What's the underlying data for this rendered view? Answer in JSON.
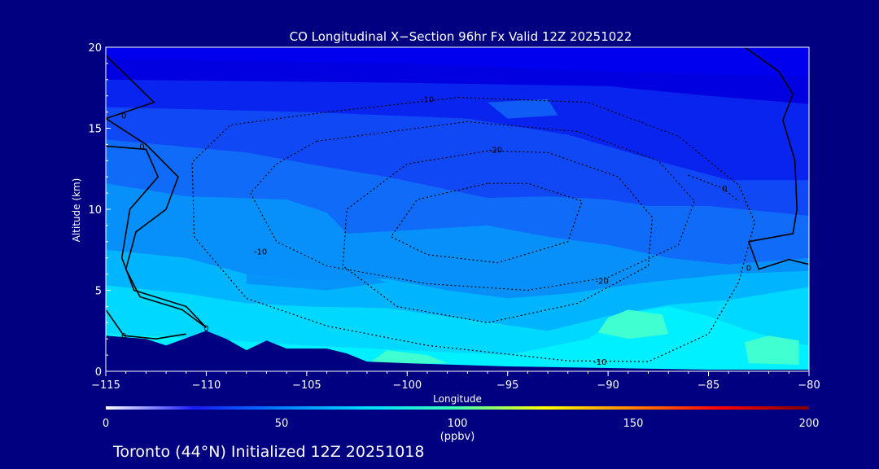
{
  "chart_data": {
    "type": "contour",
    "title": "CO Longitudinal X−Section 96hr  Fx Valid 12Z 20251022",
    "xlabel": "Longitude",
    "ylabel": "Altitude (km)",
    "xlim": [
      -115,
      -80
    ],
    "ylim": [
      0,
      20
    ],
    "x_ticks": [
      -115,
      -110,
      -105,
      -100,
      -95,
      -90,
      -85,
      -80
    ],
    "x_tick_labels": [
      "−115",
      "−110",
      "−105",
      "−100",
      "−95",
      "−90",
      "−85",
      "−80"
    ],
    "y_ticks": [
      0,
      5,
      10,
      15,
      20
    ],
    "y_tick_labels": [
      "0",
      "5",
      "10",
      "15",
      "20"
    ],
    "colorbar": {
      "label": "(ppbv)",
      "min": 0,
      "max": 200,
      "ticks": [
        0,
        50,
        100,
        150,
        200
      ],
      "tick_labels": [
        "0",
        "50",
        "100",
        "150",
        "200"
      ],
      "colors": [
        "#ffffff",
        "#1a1aff",
        "#0080ff",
        "#00e0ff",
        "#40ffb0",
        "#ffff00",
        "#ff8000",
        "#ff0000",
        "#800000"
      ]
    },
    "filled_levels": [
      {
        "range_ppbv": "20-30",
        "color": "#0000ee"
      },
      {
        "range_ppbv": "30-40",
        "color": "#0a24f0"
      },
      {
        "range_ppbv": "40-50",
        "color": "#1048f5"
      },
      {
        "range_ppbv": "50-60",
        "color": "#106cf8"
      },
      {
        "range_ppbv": "60-70",
        "color": "#0890fa"
      },
      {
        "range_ppbv": "70-80",
        "color": "#00b4fd"
      },
      {
        "range_ppbv": "80-90",
        "color": "#00d8ff"
      },
      {
        "range_ppbv": "90-100",
        "color": "#00f0ff"
      },
      {
        "range_ppbv": "100-110",
        "color": "#40ffd0"
      }
    ],
    "contour_labels": [
      {
        "text": "0",
        "lon": -114.1,
        "alt": 15.8
      },
      {
        "text": "0",
        "lon": -113.2,
        "alt": 13.9
      },
      {
        "text": "0",
        "lon": -114.1,
        "alt": 2.2
      },
      {
        "text": "0",
        "lon": -110.0,
        "alt": 2.7
      },
      {
        "text": "0",
        "lon": -84.2,
        "alt": 11.3
      },
      {
        "text": "0",
        "lon": -83.0,
        "alt": 6.4
      },
      {
        "text": "-10",
        "lon": -99.0,
        "alt": 16.8
      },
      {
        "text": "-10",
        "lon": -107.3,
        "alt": 7.4
      },
      {
        "text": "-10",
        "lon": -90.4,
        "alt": 0.6
      },
      {
        "text": "-20",
        "lon": -95.6,
        "alt": 13.7
      },
      {
        "text": "-20",
        "lon": -90.3,
        "alt": 5.6
      }
    ],
    "terrain_profile": [
      [
        -115,
        2.2
      ],
      [
        -113,
        2.0
      ],
      [
        -112,
        1.6
      ],
      [
        -110,
        2.5
      ],
      [
        -109,
        2.0
      ],
      [
        -108,
        1.3
      ],
      [
        -107,
        1.9
      ],
      [
        -106,
        1.4
      ],
      [
        -104,
        1.4
      ],
      [
        -103,
        1.1
      ],
      [
        -102,
        0.6
      ],
      [
        -100,
        0.5
      ],
      [
        -95,
        0.3
      ],
      [
        -90,
        0.2
      ],
      [
        -85,
        0.1
      ],
      [
        -80,
        0.1
      ]
    ],
    "zero_line_west_lon_at_alt": [
      [
        -115,
        19.5
      ],
      [
        -112.6,
        16.6
      ],
      [
        -115,
        15.6
      ],
      [
        -113,
        14.0
      ],
      [
        -111.4,
        12.0
      ],
      [
        -112.0,
        10.0
      ],
      [
        -113.5,
        8.6
      ],
      [
        -114,
        6.3
      ],
      [
        -113.3,
        4.6
      ],
      [
        -111.2,
        3.8
      ],
      [
        -110,
        2.7
      ]
    ],
    "negative_minus10_contour": [
      [
        -97.4,
        16.9
      ],
      [
        -104,
        16.0
      ],
      [
        -108.8,
        15.2
      ],
      [
        -110.7,
        12.9
      ],
      [
        -110.6,
        8.3
      ],
      [
        -108,
        4.5
      ],
      [
        -104,
        2.8
      ],
      [
        -99,
        1.6
      ],
      [
        -92,
        0.65
      ],
      [
        -88,
        0.6
      ],
      [
        -85,
        2.3
      ],
      [
        -83.5,
        5.5
      ],
      [
        -82.7,
        9.2
      ],
      [
        -83.5,
        11.5
      ],
      [
        -86.5,
        14.5
      ],
      [
        -91,
        16.6
      ],
      [
        -97.4,
        16.9
      ]
    ],
    "negative_minus20_contour": [
      [
        -96,
        13.6
      ],
      [
        -100,
        12.8
      ],
      [
        -103,
        10.0
      ],
      [
        -103.2,
        6.5
      ],
      [
        -100.5,
        4.0
      ],
      [
        -96,
        3.0
      ],
      [
        -91.5,
        4.2
      ],
      [
        -88,
        6.5
      ],
      [
        -87.8,
        9.5
      ],
      [
        -89.5,
        12.0
      ],
      [
        -93,
        13.5
      ],
      [
        -96,
        13.6
      ]
    ],
    "negative_minus30_contour": [
      [
        -96,
        11.6
      ],
      [
        -99.5,
        10.6
      ],
      [
        -100.8,
        8.3
      ],
      [
        -99,
        7.2
      ],
      [
        -95.5,
        6.7
      ],
      [
        -92.0,
        8.0
      ],
      [
        -91.3,
        10.5
      ],
      [
        -94,
        11.6
      ],
      [
        -96,
        11.6
      ]
    ]
  },
  "footer": {
    "caption": "Toronto (44°N) Initialized 12Z 20251018"
  }
}
